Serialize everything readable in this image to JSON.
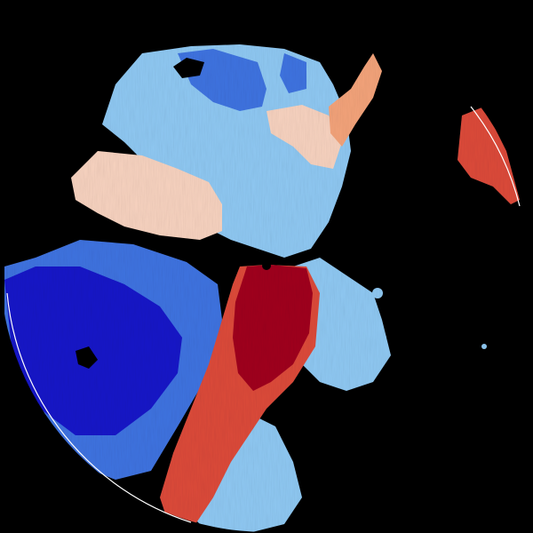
{
  "product": "radial-velocity-ppi",
  "colors": {
    "background": "#000000",
    "strong_inbound": "#1414c8",
    "moderate_inbound": "#3f73e0",
    "light_inbound": "#8fc8f2",
    "near_zero_inbound": "#c6e3f7",
    "near_zero_outbound": "#f7d2bf",
    "light_outbound": "#f3a37a",
    "moderate_outbound": "#dc4a3a",
    "strong_outbound": "#a0001f",
    "radar_site": "#000000",
    "range_edge": "#ffffff"
  },
  "icons": {
    "radar_site": "radar-site-dot-icon"
  }
}
